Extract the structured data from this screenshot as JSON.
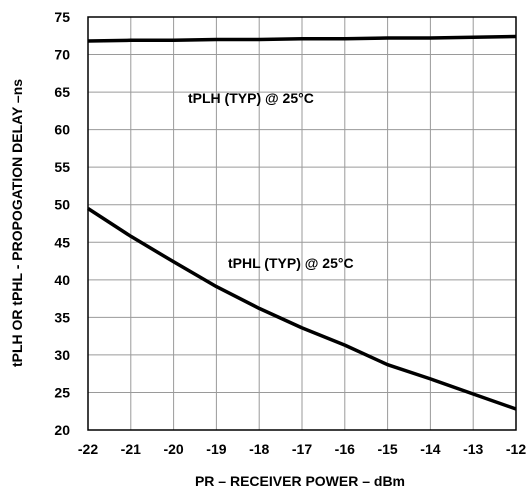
{
  "chart_data": {
    "type": "line",
    "xlabel": "PR – RECEIVER POWER – dBm",
    "ylabel": "tPLH OR tPHL - PROPOGATION DELAY –ns",
    "xlim": [
      -22,
      -12
    ],
    "ylim": [
      20,
      75
    ],
    "x_ticks": [
      "-22",
      "-21",
      "-20",
      "-19",
      "-18",
      "-17",
      "-16",
      "-15",
      "-14",
      "-13",
      "-12"
    ],
    "y_ticks": [
      "20",
      "25",
      "30",
      "35",
      "40",
      "45",
      "50",
      "55",
      "60",
      "65",
      "70",
      "75"
    ],
    "grid": true,
    "series": [
      {
        "name": "tPLH (TYP) @ 25°C",
        "x": [
          -22,
          -21,
          -20,
          -19,
          -18,
          -17,
          -16,
          -15,
          -14,
          -13,
          -12
        ],
        "y": [
          71.8,
          71.9,
          71.9,
          72.0,
          72.0,
          72.1,
          72.1,
          72.2,
          72.2,
          72.3,
          72.4
        ]
      },
      {
        "name": "tPHL (TYP) @ 25°C",
        "x": [
          -22,
          -21,
          -20,
          -19,
          -18,
          -17,
          -16,
          -15,
          -14,
          -13,
          -12
        ],
        "y": [
          49.5,
          45.8,
          42.4,
          39.1,
          36.2,
          33.6,
          31.3,
          28.7,
          26.8,
          24.8,
          22.8
        ]
      }
    ]
  }
}
